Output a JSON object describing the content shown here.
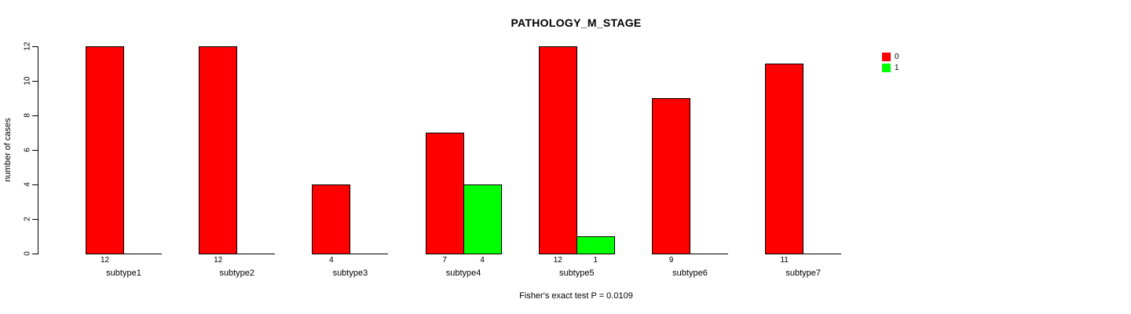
{
  "chart_data": {
    "type": "bar",
    "title": "PATHOLOGY_M_STAGE",
    "ylabel": "number of cases",
    "xlabel": "",
    "annotation": "Fisher's exact test P = 0.0109",
    "categories": [
      "subtype1",
      "subtype2",
      "subtype3",
      "subtype4",
      "subtype5",
      "subtype6",
      "subtype7"
    ],
    "series": [
      {
        "name": "0",
        "color": "#FF0000",
        "values": [
          12,
          12,
          4,
          7,
          12,
          9,
          11
        ]
      },
      {
        "name": "1",
        "color": "#00FF00",
        "values": [
          0,
          0,
          0,
          4,
          1,
          0,
          0
        ]
      }
    ],
    "bar_count_labels": {
      "0": [
        "12",
        "12",
        "4",
        "7",
        "12",
        "9",
        "11"
      ],
      "1": [
        "",
        "",
        "",
        "4",
        "1",
        "",
        ""
      ]
    },
    "ylim": [
      0,
      12
    ],
    "yticks": [
      0,
      2,
      4,
      6,
      8,
      10,
      12
    ],
    "grid": false,
    "legend_position": "right",
    "legend_entries": [
      "0",
      "1"
    ],
    "background": "#FFFFFF",
    "bar_border_color": "#000000"
  }
}
